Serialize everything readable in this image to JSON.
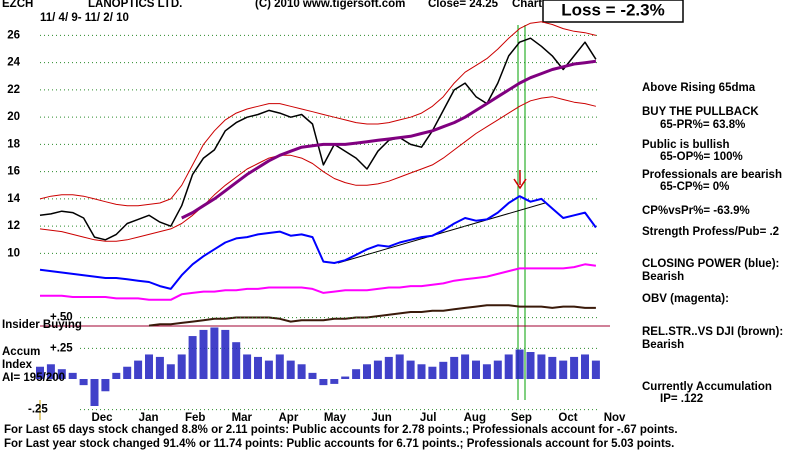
{
  "chart_data": {
    "type": "line",
    "ticker": "EZCH",
    "title": "LANOPTICS LTD.",
    "subtitle": "11/ 4/ 9- 11/ 2/ 10",
    "copyright": "(C) 2010 www.tigersoft.com",
    "close": "Close=  24.25",
    "chart_label": "Chart",
    "banner": "Loss = -2.3%",
    "months": [
      "Dec",
      "Jan",
      "Feb",
      "Mar",
      "Apr",
      "May",
      "Jun",
      "Jul",
      "Aug",
      "Sep",
      "Oct",
      "Nov"
    ],
    "ylim": [
      4.5,
      28.6
    ],
    "yticks": [
      10,
      12,
      14,
      16,
      18,
      20,
      22,
      24,
      26
    ],
    "grid": true,
    "series": [
      {
        "color": "#cc0000",
        "width": 1,
        "values": [
          14.0,
          14.2,
          14.3,
          14.3,
          14.2,
          14.0,
          13.8,
          13.6,
          13.5,
          13.5,
          13.6,
          13.7,
          14.0,
          15.0,
          16.5,
          18.0,
          19.0,
          19.8,
          20.3,
          20.6,
          20.8,
          21.0,
          21.0,
          20.8,
          20.6,
          20.4,
          20.2,
          20.0,
          19.8,
          19.6,
          19.5,
          19.5,
          19.6,
          19.8,
          20.0,
          20.3,
          20.8,
          21.5,
          22.5,
          23.3,
          23.8,
          24.3,
          25.0,
          25.8,
          26.5,
          26.9,
          27.0,
          26.8,
          26.5,
          26.3,
          26.2,
          26.0
        ]
      },
      {
        "color": "#cc0000",
        "width": 1,
        "values": [
          11.8,
          11.7,
          11.6,
          11.4,
          11.2,
          11.0,
          10.9,
          10.9,
          11.0,
          11.2,
          11.4,
          11.6,
          11.8,
          12.2,
          12.8,
          13.5,
          14.3,
          15.0,
          15.6,
          16.2,
          16.6,
          17.0,
          17.2,
          17.2,
          17.0,
          16.6,
          16.0,
          15.5,
          15.2,
          15.0,
          15.0,
          15.1,
          15.3,
          15.6,
          15.9,
          16.2,
          16.5,
          17.0,
          17.6,
          18.2,
          18.8,
          19.3,
          19.8,
          20.3,
          20.8,
          21.2,
          21.4,
          21.5,
          21.3,
          21.1,
          21.0,
          20.8
        ]
      },
      {
        "color": "#000000",
        "width": 1.5,
        "values": [
          12.8,
          12.9,
          13.1,
          13.0,
          12.6,
          11.2,
          11.0,
          11.4,
          12.2,
          12.5,
          12.8,
          12.3,
          12.0,
          13.5,
          15.8,
          17.0,
          17.6,
          19.0,
          19.6,
          20.0,
          20.2,
          20.5,
          20.3,
          20.0,
          20.2,
          19.5,
          16.5,
          18.0,
          17.5,
          17.0,
          16.2,
          17.5,
          18.3,
          18.5,
          18.0,
          17.8,
          19.0,
          20.5,
          22.0,
          22.5,
          21.5,
          21.0,
          22.5,
          24.5,
          25.5,
          25.8,
          25.2,
          24.5,
          23.5,
          24.5,
          25.5,
          24.25
        ]
      },
      {
        "color": "#800080",
        "width": 3,
        "values": [
          null,
          null,
          null,
          null,
          null,
          null,
          null,
          null,
          null,
          null,
          null,
          null,
          null,
          12.6,
          13.0,
          13.5,
          14.0,
          14.6,
          15.2,
          15.8,
          16.3,
          16.8,
          17.2,
          17.5,
          17.8,
          17.9,
          18.0,
          18.0,
          18.0,
          18.1,
          18.2,
          18.3,
          18.4,
          18.5,
          18.6,
          18.8,
          19.0,
          19.3,
          19.6,
          20.0,
          20.5,
          21.0,
          21.5,
          22.0,
          22.5,
          22.9,
          23.2,
          23.5,
          23.7,
          23.9,
          24.0,
          24.1
        ]
      },
      {
        "color": "#0000ff",
        "width": 2,
        "values": [
          8.8,
          8.7,
          8.6,
          8.5,
          8.4,
          8.3,
          8.2,
          8.2,
          8.1,
          8.0,
          7.9,
          7.6,
          7.4,
          8.4,
          9.2,
          9.8,
          10.3,
          10.8,
          11.1,
          11.2,
          11.4,
          11.5,
          11.6,
          11.3,
          11.4,
          11.2,
          9.4,
          9.3,
          9.5,
          9.9,
          10.3,
          10.6,
          10.5,
          10.8,
          11.0,
          11.2,
          11.3,
          11.7,
          12.2,
          12.6,
          12.4,
          12.5,
          13.0,
          13.7,
          14.2,
          13.8,
          14.0,
          13.3,
          12.6,
          12.8,
          13.0,
          11.9
        ]
      },
      {
        "color": "#ff00ff",
        "width": 2,
        "values": [
          6.9,
          6.9,
          6.9,
          6.8,
          6.8,
          6.8,
          6.8,
          6.7,
          6.7,
          6.7,
          6.6,
          6.6,
          6.6,
          7.0,
          7.1,
          7.2,
          7.2,
          7.3,
          7.3,
          7.4,
          7.4,
          7.5,
          7.5,
          7.5,
          7.5,
          7.4,
          7.1,
          7.2,
          7.3,
          7.3,
          7.3,
          7.4,
          7.5,
          7.5,
          7.6,
          7.6,
          7.7,
          7.8,
          8.0,
          8.1,
          8.2,
          8.3,
          8.5,
          8.7,
          8.9,
          8.9,
          8.9,
          8.9,
          8.9,
          9.0,
          9.2,
          9.1
        ]
      },
      {
        "color": "#3a1a0a",
        "width": 2,
        "values": [
          null,
          null,
          null,
          null,
          null,
          null,
          null,
          null,
          null,
          null,
          4.7,
          4.8,
          4.8,
          4.9,
          5.0,
          5.1,
          5.2,
          5.2,
          5.3,
          5.3,
          5.3,
          5.3,
          5.2,
          5.0,
          5.1,
          5.1,
          5.1,
          5.2,
          5.2,
          5.3,
          5.3,
          5.4,
          5.5,
          5.6,
          5.7,
          5.7,
          5.8,
          5.8,
          5.9,
          6.0,
          6.1,
          6.2,
          6.2,
          6.2,
          6.1,
          6.1,
          6.1,
          6.0,
          6.1,
          6.1,
          6.0,
          6.0
        ]
      }
    ],
    "accum": {
      "type": "bar",
      "color": "#2020c0",
      "ylim": [
        -0.3,
        0.55
      ],
      "yticks": [
        {
          "value": 0.5,
          "label": "+.50"
        },
        {
          "value": 0.25,
          "label": "+.25"
        },
        {
          "value": -0.25,
          "label": "-.25"
        }
      ],
      "values": [
        0.1,
        0.12,
        0.08,
        0.05,
        -0.05,
        -0.22,
        -0.1,
        0.05,
        0.1,
        0.15,
        0.2,
        0.18,
        0.12,
        0.2,
        0.35,
        0.4,
        0.42,
        0.4,
        0.3,
        0.2,
        0.18,
        0.15,
        0.2,
        0.15,
        0.12,
        0.05,
        -0.05,
        -0.04,
        0.02,
        0.08,
        0.12,
        0.15,
        0.18,
        0.2,
        0.15,
        0.12,
        0.1,
        0.14,
        0.18,
        0.2,
        0.15,
        0.12,
        0.15,
        0.2,
        0.24,
        0.22,
        0.2,
        0.18,
        0.15,
        0.18,
        0.2,
        0.15
      ],
      "labels": [
        "Insider Buying",
        "Accum",
        "Index",
        "AI= 195/200"
      ]
    },
    "notes": [
      "Above Rising 65dma",
      "BUY THE PULLBACK",
      "65-PR%= 63.8%",
      "Public is bullish",
      "65-OP%= 100%",
      "Professionals are bearish",
      "65-CP%= 0%",
      "CP%vsPr%= -63.9%",
      "Strength Profess/Pub= .2",
      "CLOSING POWER (blue):",
      "Bearish",
      "OBV (magenta):",
      "REL.STR..VS DJI (brown):",
      "Bearish",
      "Currently Accumulation",
      "IP= .122"
    ],
    "footer": [
      "For Last 65 days stock changed  8.8% or  2.11 points:  Public accounts for  2.78 points.;  Professionals account for -.67 points.",
      "For Last year stock changed  91.4% or  11.74 points:  Public accounts for  6.71 points.;  Professionals account for  5.03 points."
    ]
  }
}
